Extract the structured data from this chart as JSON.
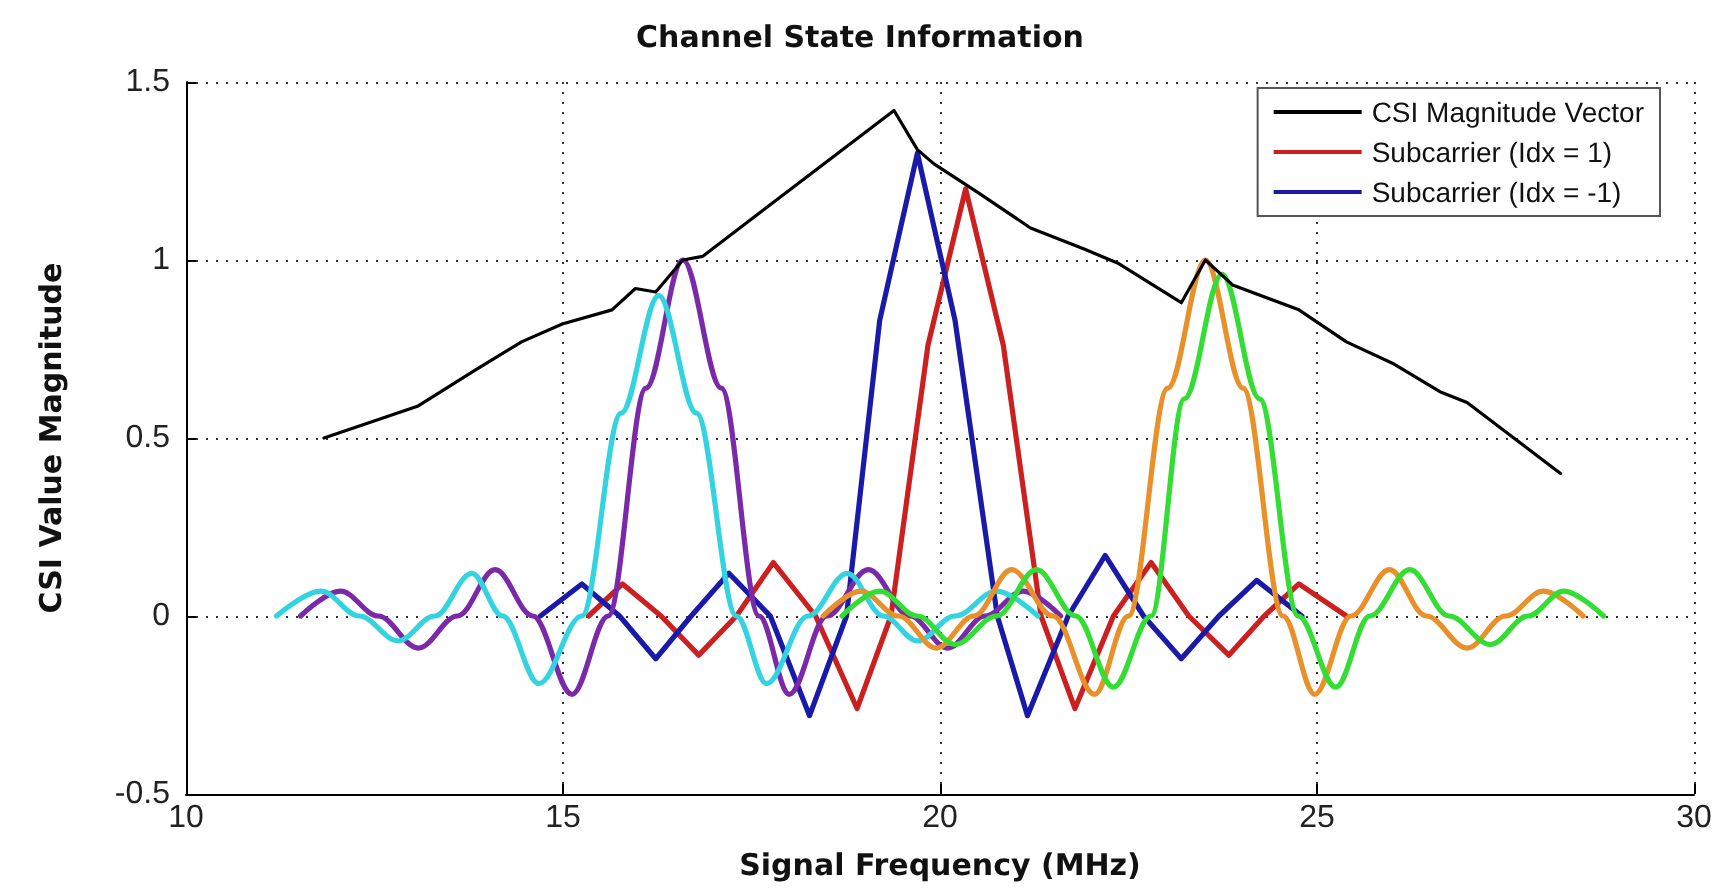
{
  "chart_data": {
    "type": "line",
    "title": "Channel State Information",
    "xlabel": "Signal Frequency (MHz)",
    "ylabel": "CSI Value Magnitude",
    "xlim": [
      10,
      30
    ],
    "xticks": [
      10,
      15,
      20,
      25,
      30
    ],
    "ylim": [
      -0.5,
      1.5
    ],
    "yticks": [
      -0.5,
      0,
      0.5,
      1,
      1.5
    ],
    "grid": true,
    "legend": "top right",
    "marker": "none",
    "line_style": "solid",
    "series": [
      {
        "name": "CSI Magnitude Vector",
        "color": "#000000",
        "x": [
          11.83,
          13.08,
          13.83,
          14.45,
          14.99,
          15.65,
          15.96,
          16.23,
          16.59,
          16.85,
          19.39,
          19.7,
          19.92,
          20.5,
          21.2,
          21.92,
          22.37,
          23.2,
          23.52,
          23.88,
          24.76,
          25.39,
          26.0,
          26.63,
          26.99,
          28.23
        ],
        "values": [
          0.5,
          0.59,
          0.69,
          0.77,
          0.82,
          0.86,
          0.92,
          0.91,
          1.0,
          1.01,
          1.42,
          1.31,
          1.27,
          1.19,
          1.09,
          1.03,
          0.99,
          0.88,
          1.0,
          0.93,
          0.86,
          0.77,
          0.71,
          0.63,
          0.6,
          0.4
        ]
      },
      {
        "name": "Subcarrier (Idx = 1)",
        "color": "#cc2020",
        "x": [
          15.34,
          15.79,
          16.3,
          16.8,
          17.3,
          17.79,
          18.35,
          18.9,
          19.35,
          19.84,
          20.34,
          20.84,
          21.34,
          21.79,
          22.3,
          22.8,
          23.3,
          23.83,
          24.3,
          24.76,
          25.39
        ],
        "values": [
          0,
          0.09,
          0,
          -0.11,
          0,
          0.15,
          0,
          -0.26,
          0,
          0.76,
          1.2,
          0.76,
          0,
          -0.26,
          0,
          0.15,
          0,
          -0.11,
          0,
          0.09,
          0
        ]
      },
      {
        "name": "Subcarrier (Idx = -1)",
        "color": "#1a1aa8",
        "x": [
          14.7,
          15.25,
          15.75,
          16.23,
          16.7,
          17.2,
          17.75,
          18.27,
          18.76,
          19.2,
          19.7,
          20.2,
          20.76,
          21.16,
          21.7,
          22.19,
          22.7,
          23.2,
          23.7,
          24.2,
          24.8
        ],
        "values": [
          0,
          0.09,
          0,
          -0.12,
          0,
          0.12,
          0,
          -0.28,
          0,
          0.83,
          1.3,
          0.83,
          0,
          -0.28,
          0,
          0.17,
          0,
          -0.12,
          0,
          0.1,
          0
        ]
      },
      {
        "color": "#7a2aa8",
        "x": [
          11.52,
          12.05,
          12.55,
          13.08,
          13.6,
          14.1,
          14.6,
          15.12,
          15.6,
          16.1,
          16.59,
          17.1,
          17.6,
          18.0,
          18.5,
          19.05,
          19.6,
          20.1,
          20.6,
          21.1,
          21.6
        ],
        "values": [
          0,
          0.07,
          0,
          -0.09,
          0,
          0.13,
          0,
          -0.22,
          0,
          0.64,
          1.0,
          0.64,
          0,
          -0.22,
          0,
          0.13,
          0,
          -0.09,
          0,
          0.07,
          0
        ]
      },
      {
        "color": "#33d4e0",
        "x": [
          11.2,
          11.79,
          12.3,
          12.81,
          13.3,
          13.79,
          14.2,
          14.68,
          15.25,
          15.77,
          16.27,
          16.77,
          17.3,
          17.7,
          18.25,
          18.77,
          19.25,
          19.7,
          20.2,
          20.75,
          21.3
        ],
        "values": [
          0,
          0.07,
          0,
          -0.07,
          0,
          0.12,
          0,
          -0.19,
          0,
          0.57,
          0.9,
          0.57,
          0,
          -0.19,
          0,
          0.12,
          0,
          -0.07,
          0,
          0.07,
          0
        ]
      },
      {
        "color": "#e8902a",
        "x": [
          18.45,
          18.95,
          19.45,
          19.95,
          20.45,
          20.95,
          21.5,
          22.05,
          22.5,
          23.02,
          23.52,
          24.02,
          24.55,
          24.97,
          25.45,
          25.96,
          26.45,
          26.99,
          27.5,
          28.0,
          28.53
        ],
        "values": [
          0,
          0.07,
          0,
          -0.09,
          0,
          0.13,
          0,
          -0.22,
          0,
          0.64,
          1.0,
          0.64,
          0,
          -0.22,
          0,
          0.13,
          0,
          -0.09,
          0,
          0.07,
          0
        ]
      },
      {
        "color": "#33dd33",
        "x": [
          18.7,
          19.2,
          19.7,
          20.2,
          20.75,
          21.28,
          21.8,
          22.3,
          22.8,
          23.24,
          23.74,
          24.24,
          24.75,
          25.25,
          25.7,
          26.23,
          26.75,
          27.3,
          27.8,
          28.27,
          28.8
        ],
        "values": [
          0,
          0.07,
          0,
          -0.08,
          0,
          0.13,
          0,
          -0.2,
          0,
          0.61,
          0.96,
          0.61,
          0,
          -0.2,
          0,
          0.13,
          0,
          -0.08,
          0,
          0.07,
          0
        ]
      }
    ]
  }
}
